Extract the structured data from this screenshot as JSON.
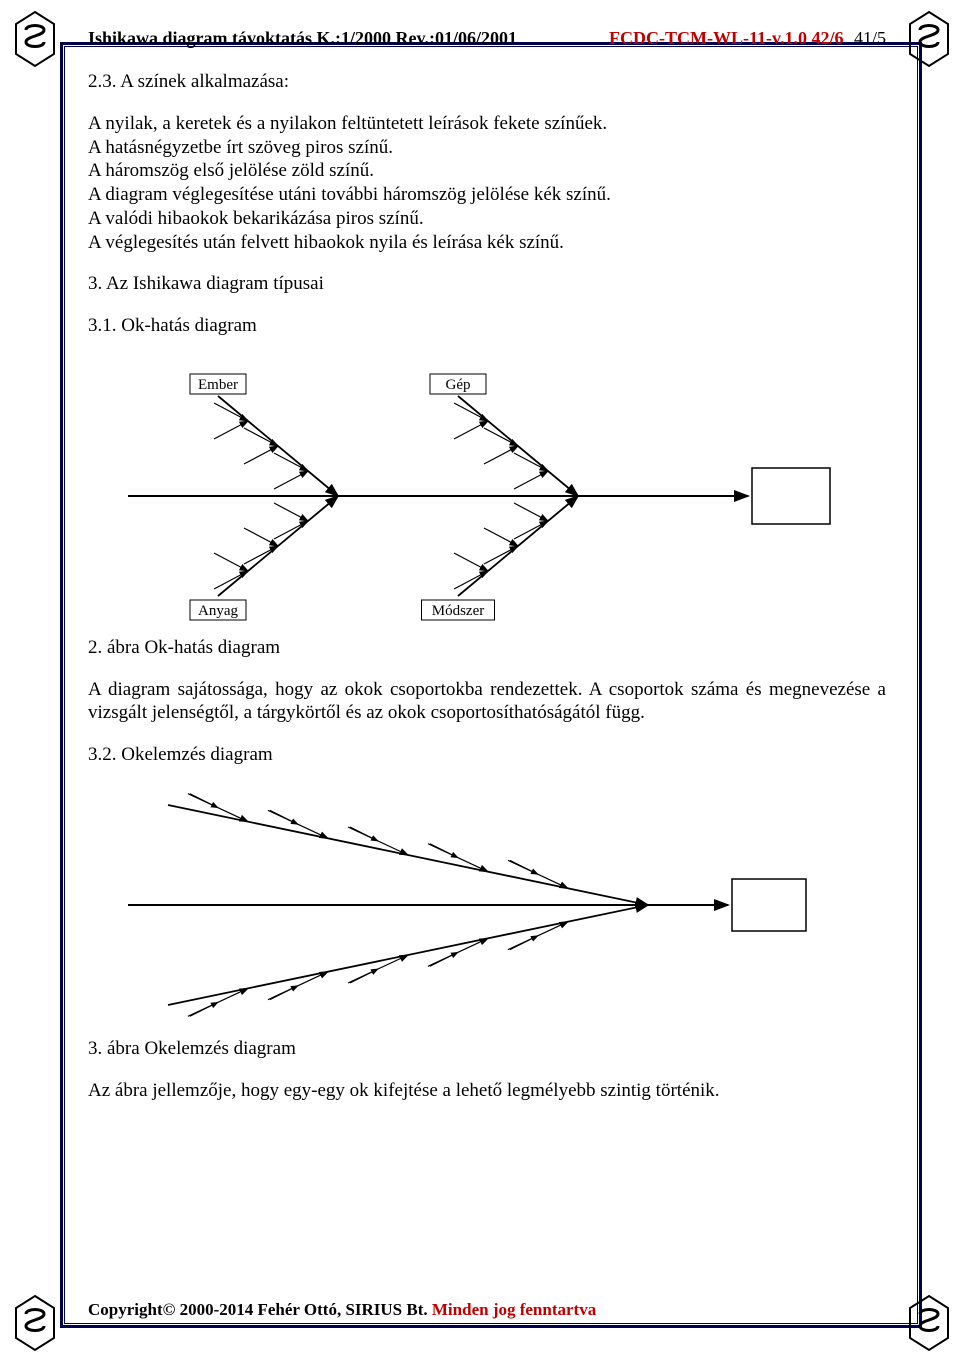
{
  "header": {
    "left": "Ishikawa diagram távoktatás K.:1/2000 Rev.:01/06/2001",
    "code": "FCDC-TCM-WL-11-v.1.0  42/6",
    "page": "41/5"
  },
  "section_2_3_title": "2.3. A színek alkalmazása:",
  "section_2_3_body": "A nyilak, a keretek és a nyilakon feltüntetett leírások fekete színűek.\nA hatásnégyzetbe írt szöveg piros színű.\nA háromszög első jelölése zöld színű.\nA diagram véglegesítése utáni további háromszög jelölése kék színű.\nA valódi hibaokok bekarikázása piros színű.\nA véglegesítés után felvett hibaokok nyila és leírása kék színű.",
  "section_3_title": "3. Az Ishikawa diagram típusai",
  "section_3_1_title": "3.1. Ok-hatás diagram",
  "fig2": {
    "labels": {
      "tl": "Ember",
      "tr": "Gép",
      "bl": "Anyag",
      "br": "Módszer"
    },
    "caption": "2. ábra Ok-hatás diagram",
    "stroke": "#000000",
    "fill": "#ffffff",
    "arrow_len": 34
  },
  "section_3_1_body": "A diagram sajátossága, hogy az okok csoportokba rendezettek. A csoportok száma és megnevezése a vizsgált jelenségtől, a tárgykörtől és az okok csoportosíthatóságától függ.",
  "section_3_2_title": "3.2. Okelemzés diagram",
  "fig3": {
    "caption": "3. ábra Okelemzés diagram",
    "stroke": "#000000",
    "fill": "#ffffff"
  },
  "section_3_2_body": "Az ábra jellemzője, hogy egy-egy ok kifejtése a lehető legmélyebb szintig történik.",
  "footer": {
    "black": "Copyright© 2000-2014 Fehér Ottó, SIRIUS Bt.",
    "red": " Minden jog fenntartva"
  },
  "logo": {
    "stroke": "#000000",
    "fill": "#ffffff"
  }
}
